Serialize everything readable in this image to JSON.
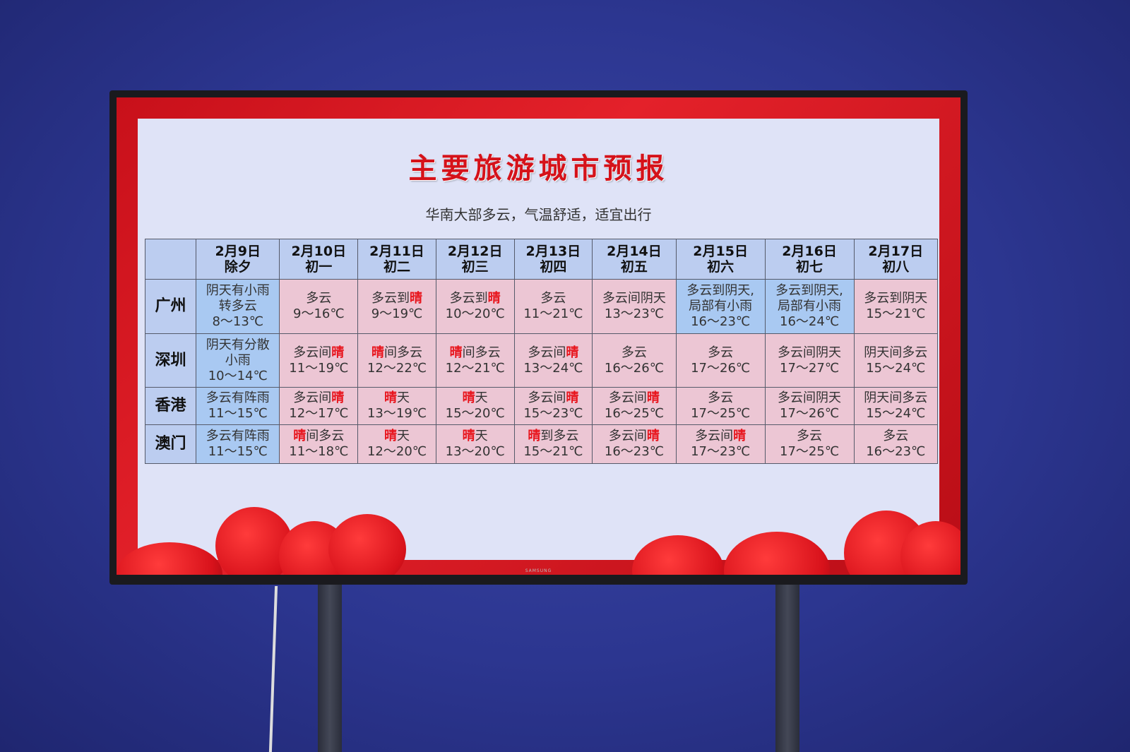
{
  "title": "主要旅游城市预报",
  "subtitle": "华南大部多云，气温舒适，适宜出行",
  "brand_logo": "SAMSUNG",
  "colors": {
    "highlight_sunny": "#e8141c",
    "cell_default": "#ecc6d4",
    "cell_rain": "#a9c9f2",
    "header": "#bccdf0",
    "frame": "#e4212a"
  },
  "columns": [
    {
      "date": "2月9日",
      "lunar": "除夕"
    },
    {
      "date": "2月10日",
      "lunar": "初一"
    },
    {
      "date": "2月11日",
      "lunar": "初二"
    },
    {
      "date": "2月12日",
      "lunar": "初三"
    },
    {
      "date": "2月13日",
      "lunar": "初四"
    },
    {
      "date": "2月14日",
      "lunar": "初五"
    },
    {
      "date": "2月15日",
      "lunar": "初六"
    },
    {
      "date": "2月16日",
      "lunar": "初七"
    },
    {
      "date": "2月17日",
      "lunar": "初八"
    }
  ],
  "rows": [
    {
      "city": "广州",
      "cells": [
        {
          "weather": [
            "阴天有小雨",
            "转多云"
          ],
          "temp": "8～13℃",
          "rain": true
        },
        {
          "weather": [
            "多云"
          ],
          "temp": "9～16℃"
        },
        {
          "weather": [
            "多云到晴"
          ],
          "temp": "9～19℃"
        },
        {
          "weather": [
            "多云到晴"
          ],
          "temp": "10～20℃"
        },
        {
          "weather": [
            "多云"
          ],
          "temp": "11～21℃"
        },
        {
          "weather": [
            "多云间阴天"
          ],
          "temp": "13～23℃"
        },
        {
          "weather": [
            "多云到阴天,",
            "局部有小雨"
          ],
          "temp": "16～23℃",
          "rain": true
        },
        {
          "weather": [
            "多云到阴天,",
            "局部有小雨"
          ],
          "temp": "16～24℃",
          "rain": true
        },
        {
          "weather": [
            "多云到阴天"
          ],
          "temp": "15～21℃"
        }
      ]
    },
    {
      "city": "深圳",
      "cells": [
        {
          "weather": [
            "阴天有分散",
            "小雨"
          ],
          "temp": "10～14℃",
          "rain": true
        },
        {
          "weather": [
            "多云间晴"
          ],
          "temp": "11～19℃"
        },
        {
          "weather": [
            "晴间多云"
          ],
          "temp": "12～22℃"
        },
        {
          "weather": [
            "晴间多云"
          ],
          "temp": "12～21℃"
        },
        {
          "weather": [
            "多云间晴"
          ],
          "temp": "13～24℃"
        },
        {
          "weather": [
            "多云"
          ],
          "temp": "16～26℃"
        },
        {
          "weather": [
            "多云"
          ],
          "temp": "17～26℃"
        },
        {
          "weather": [
            "多云间阴天"
          ],
          "temp": "17～27℃"
        },
        {
          "weather": [
            "阴天间多云"
          ],
          "temp": "15～24℃"
        }
      ]
    },
    {
      "city": "香港",
      "cells": [
        {
          "weather": [
            "多云有阵雨"
          ],
          "temp": "11～15℃",
          "rain": true
        },
        {
          "weather": [
            "多云间晴"
          ],
          "temp": "12～17℃"
        },
        {
          "weather": [
            "晴天"
          ],
          "temp": "13～19℃"
        },
        {
          "weather": [
            "晴天"
          ],
          "temp": "15～20℃"
        },
        {
          "weather": [
            "多云间晴"
          ],
          "temp": "15～23℃"
        },
        {
          "weather": [
            "多云间晴"
          ],
          "temp": "16～25℃"
        },
        {
          "weather": [
            "多云"
          ],
          "temp": "17～25℃"
        },
        {
          "weather": [
            "多云间阴天"
          ],
          "temp": "17～26℃"
        },
        {
          "weather": [
            "阴天间多云"
          ],
          "temp": "15～24℃"
        }
      ]
    },
    {
      "city": "澳门",
      "cells": [
        {
          "weather": [
            "多云有阵雨"
          ],
          "temp": "11～15℃",
          "rain": true
        },
        {
          "weather": [
            "晴间多云"
          ],
          "temp": "11～18℃"
        },
        {
          "weather": [
            "晴天"
          ],
          "temp": "12～20℃"
        },
        {
          "weather": [
            "晴天"
          ],
          "temp": "13～20℃"
        },
        {
          "weather": [
            "晴到多云"
          ],
          "temp": "15～21℃"
        },
        {
          "weather": [
            "多云间晴"
          ],
          "temp": "16～23℃"
        },
        {
          "weather": [
            "多云间晴"
          ],
          "temp": "17～23℃"
        },
        {
          "weather": [
            "多云"
          ],
          "temp": "17～25℃"
        },
        {
          "weather": [
            "多云"
          ],
          "temp": "16～23℃"
        }
      ]
    }
  ]
}
